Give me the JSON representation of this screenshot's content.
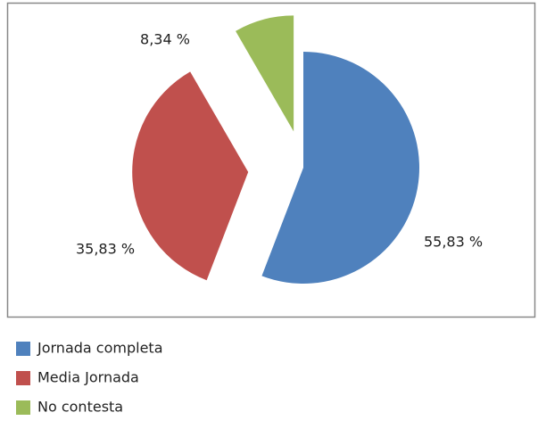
{
  "chart_data": {
    "type": "pie",
    "categories": [
      "Jornada completa",
      "Media Jornada",
      "No contesta"
    ],
    "values": [
      55.83,
      35.83,
      8.34
    ],
    "value_labels": [
      "55,83 %",
      "35,83 %",
      "8,34 %"
    ],
    "colors": [
      "#4f81bd",
      "#c0504d",
      "#9bbb59"
    ],
    "legend": "bottom"
  }
}
